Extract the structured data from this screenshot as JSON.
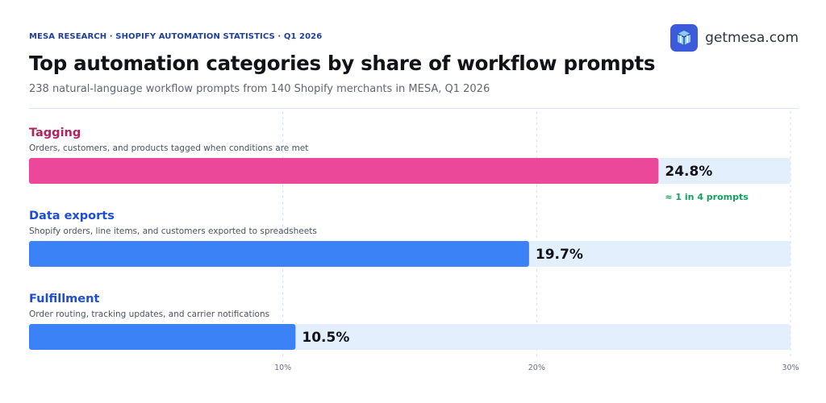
{
  "header": {
    "eyebrow": "MESA RESEARCH · SHOPIFY AUTOMATION STATISTICS · Q1 2026",
    "brand": "getmesa.com"
  },
  "colors": {
    "highlight": "#ec4899",
    "bar": "#3b82f6",
    "track": "#e3effd",
    "label_highlight": "#b0245e",
    "label": "#1d4ed8",
    "annotation": "#16a05f",
    "grid": "#cfdff5"
  },
  "chart_data": {
    "type": "bar",
    "orientation": "horizontal",
    "title": "Top automation categories by share of workflow prompts",
    "subtitle": "238 natural-language workflow prompts from 140 Shopify merchants in MESA, Q1 2026",
    "categories": [
      "Tagging",
      "Data exports",
      "Fulfillment"
    ],
    "descriptions": [
      "Orders, customers, and products tagged when conditions are met",
      "Shopify orders, line items, and customers exported to spreadsheets",
      "Order routing, tracking updates, and carrier notifications"
    ],
    "values": [
      24.8,
      19.7,
      10.5
    ],
    "value_labels": [
      "24.8%",
      "19.7%",
      "10.5%"
    ],
    "highlight_index": 0,
    "annotation": "≈ 1 in 4 prompts",
    "xlim": [
      0,
      30
    ],
    "x_ticks": [
      10,
      20,
      30
    ],
    "x_tick_labels": [
      "10%",
      "20%",
      "30%"
    ],
    "grid": true
  }
}
